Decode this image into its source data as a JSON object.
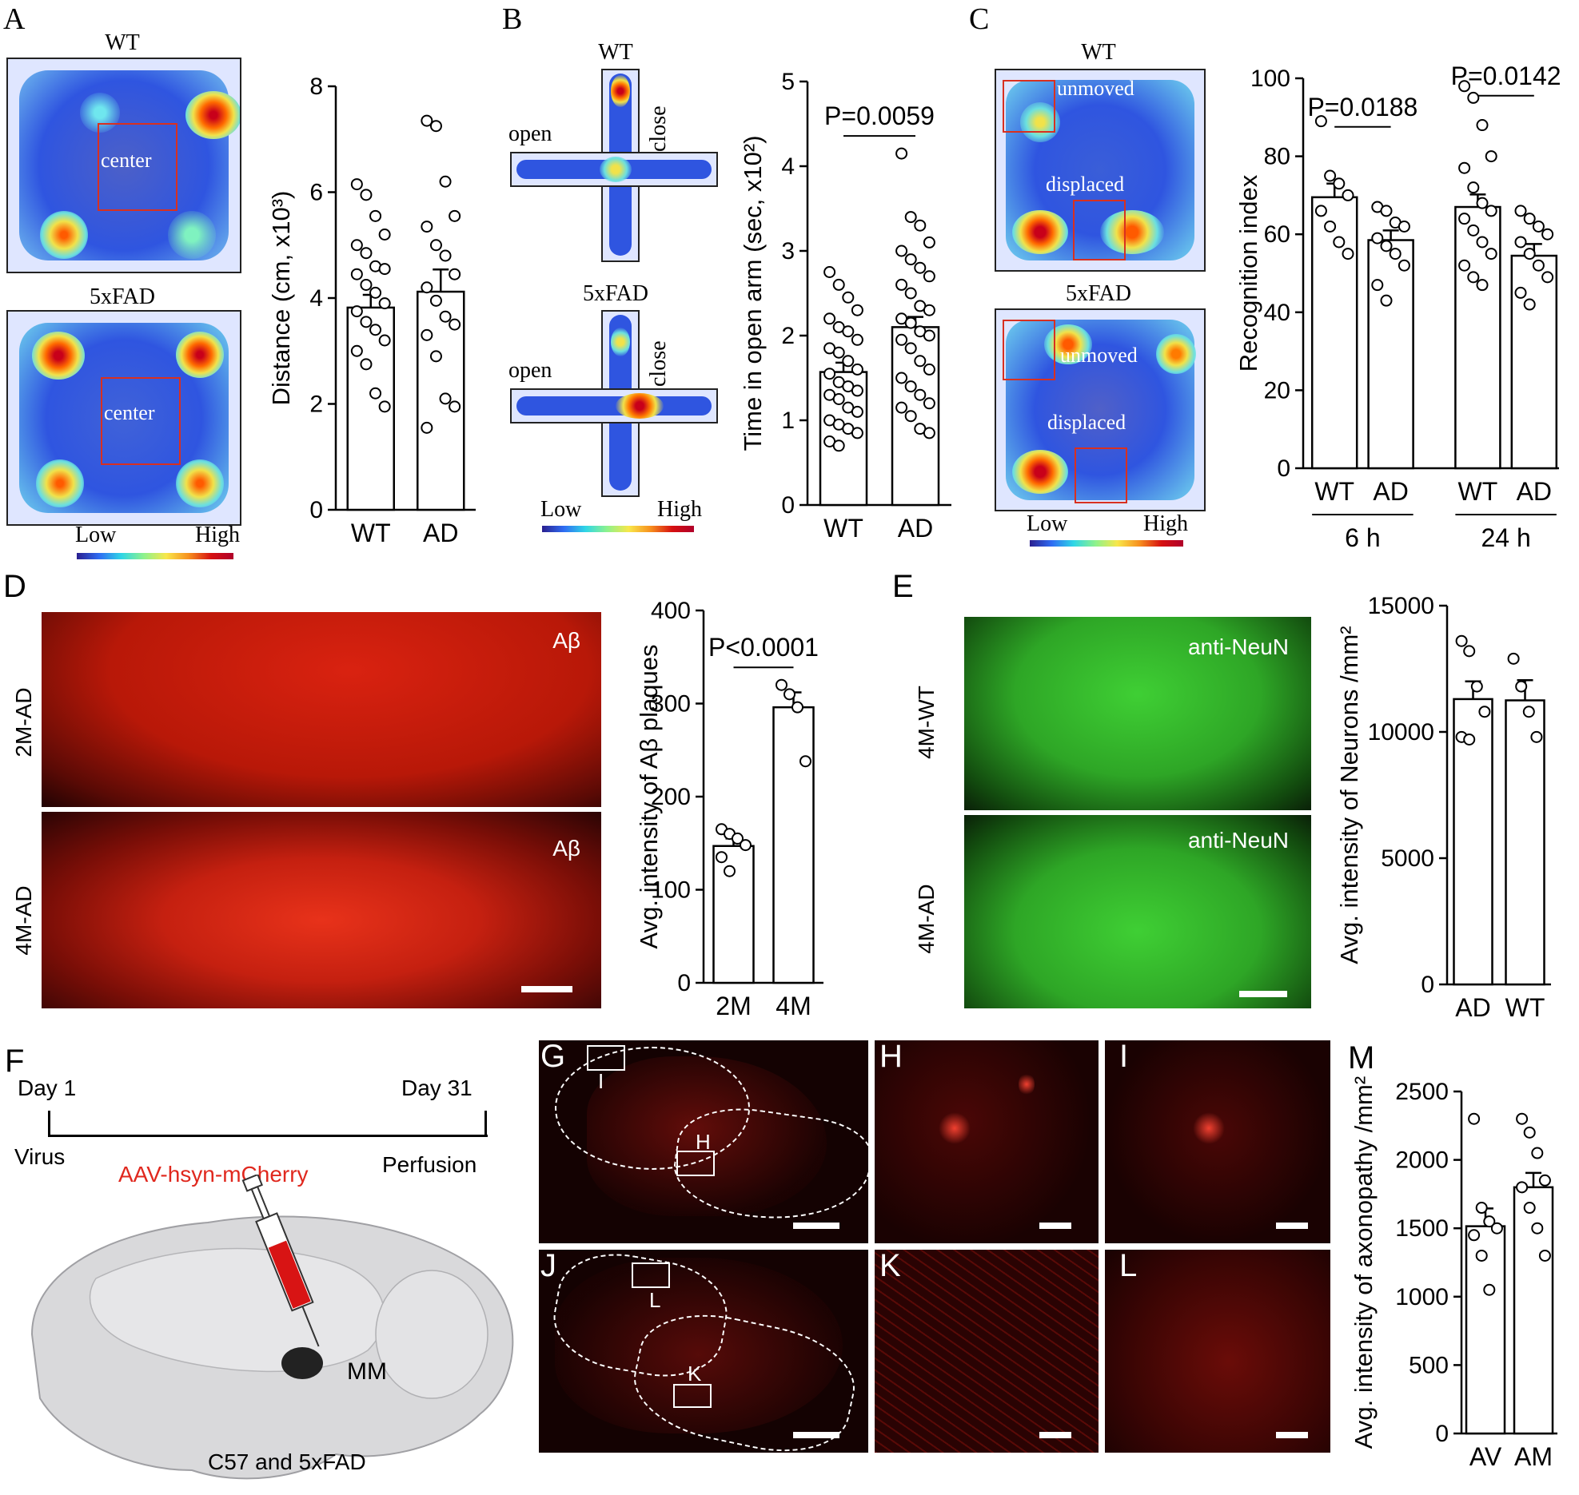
{
  "panels": {
    "A": {
      "letter": "A",
      "maps": [
        {
          "title": "WT",
          "box_label": "center"
        },
        {
          "title": "5xFAD",
          "box_label": "center"
        }
      ],
      "scale_low": "Low",
      "scale_high": "High"
    },
    "B": {
      "letter": "B",
      "maps": [
        {
          "title": "WT",
          "open": "open",
          "close": "close"
        },
        {
          "title": "5xFAD",
          "open": "open",
          "close": "close"
        }
      ],
      "scale_low": "Low",
      "scale_high": "High"
    },
    "C": {
      "letter": "C",
      "maps": [
        {
          "title": "WT",
          "unmoved": "unmoved",
          "displaced": "displaced"
        },
        {
          "title": "5xFAD",
          "unmoved": "unmoved",
          "displaced": "displaced"
        }
      ],
      "scale_low": "Low",
      "scale_high": "High"
    },
    "D": {
      "letter": "D",
      "rows": [
        {
          "side": "2M-AD",
          "tag": "Aβ"
        },
        {
          "side": "4M-AD",
          "tag": "Aβ"
        }
      ]
    },
    "E": {
      "letter": "E",
      "rows": [
        {
          "side": "4M-WT",
          "tag": "anti-NeuN"
        },
        {
          "side": "4M-AD",
          "tag": "anti-NeuN"
        }
      ]
    },
    "F": {
      "letter": "F",
      "day1": "Day 1",
      "day31": "Day 31",
      "virus": "Virus",
      "perfusion": "Perfusion",
      "aav": "AAV-hsyn-mCherry",
      "mm": "MM",
      "mice": "C57 and 5xFAD"
    },
    "G": {
      "letter": "G",
      "box1": "I",
      "box2": "H"
    },
    "H": {
      "letter": "H"
    },
    "I": {
      "letter": "I"
    },
    "J": {
      "letter": "J",
      "box1": "L",
      "box2": "K"
    },
    "K": {
      "letter": "K"
    },
    "L": {
      "letter": "L"
    },
    "M": {
      "letter": "M"
    }
  },
  "chart_data": [
    {
      "panel": "A",
      "type": "bar",
      "categories": [
        "WT",
        "AD"
      ],
      "values": [
        3.82,
        4.12
      ],
      "sem": [
        0.24,
        0.42
      ],
      "points": [
        [
          6.15,
          5.95,
          5.55,
          5.2,
          5.0,
          4.85,
          4.6,
          4.55,
          4.45,
          4.25,
          4.1,
          3.9,
          3.75,
          3.55,
          3.4,
          3.2,
          3.0,
          2.75,
          2.2,
          1.95
        ],
        [
          7.35,
          7.25,
          6.2,
          5.55,
          5.35,
          5.0,
          4.8,
          4.45,
          4.2,
          3.95,
          3.65,
          3.5,
          3.3,
          2.9,
          2.1,
          1.95,
          1.55
        ]
      ],
      "ylabel": "Distance (cm, x10³)",
      "ylim": [
        0,
        8
      ],
      "yticks": [
        0,
        2,
        4,
        6,
        8
      ]
    },
    {
      "panel": "B",
      "type": "bar",
      "categories": [
        "WT",
        "AD"
      ],
      "values": [
        1.57,
        2.1
      ],
      "sem": [
        0.11,
        0.12
      ],
      "points": [
        [
          2.75,
          2.6,
          2.45,
          2.3,
          2.2,
          2.1,
          2.05,
          1.95,
          1.85,
          1.8,
          1.7,
          1.6,
          1.55,
          1.45,
          1.4,
          1.35,
          1.3,
          1.25,
          1.15,
          1.1,
          1.0,
          0.95,
          0.9,
          0.85,
          0.75,
          0.7
        ],
        [
          4.15,
          3.4,
          3.3,
          3.1,
          3.0,
          2.9,
          2.8,
          2.7,
          2.6,
          2.5,
          2.35,
          2.3,
          2.2,
          2.15,
          2.05,
          2.0,
          1.95,
          1.85,
          1.7,
          1.6,
          1.5,
          1.4,
          1.3,
          1.2,
          1.15,
          1.05,
          0.9,
          0.85
        ]
      ],
      "annotation": "P=0.0059",
      "ylabel": "Time in open arm (sec, x10²)",
      "ylim": [
        0,
        5
      ],
      "yticks": [
        0,
        1,
        2,
        3,
        4,
        5
      ]
    },
    {
      "panel": "C",
      "type": "bar",
      "categories": [
        "WT",
        "AD",
        "WT",
        "AD"
      ],
      "groups": [
        "6 h",
        "24 h"
      ],
      "values": [
        69.5,
        58.5,
        67,
        54.5
      ],
      "sem": [
        3.5,
        2.5,
        3.2,
        3.0
      ],
      "points": [
        [
          89,
          75,
          73,
          70,
          66,
          62,
          58,
          55
        ],
        [
          67,
          66,
          63,
          62,
          59,
          57,
          55,
          52,
          47,
          43
        ],
        [
          98,
          95,
          88,
          80,
          77,
          72,
          68,
          66,
          64,
          61,
          58,
          55,
          52,
          49,
          47
        ],
        [
          66,
          64,
          62,
          60,
          58,
          55,
          52,
          49,
          45,
          42
        ]
      ],
      "annotations": [
        "P=0.0188",
        "P=0.0142"
      ],
      "ylabel": "Recognition index",
      "ylim": [
        0,
        100
      ],
      "yticks": [
        0,
        20,
        40,
        60,
        80,
        100
      ]
    },
    {
      "panel": "D",
      "type": "bar",
      "categories": [
        "2M",
        "4M"
      ],
      "values": [
        147,
        296
      ],
      "sem": [
        8,
        16
      ],
      "points": [
        [
          165,
          160,
          155,
          148,
          135,
          120
        ],
        [
          320,
          310,
          296,
          238
        ]
      ],
      "annotation": "P<0.0001",
      "ylabel": "Avg. intensity of Aβ plaques",
      "ylim": [
        0,
        400
      ],
      "yticks": [
        0,
        100,
        200,
        300,
        400
      ]
    },
    {
      "panel": "E",
      "type": "bar",
      "categories": [
        "AD",
        "WT"
      ],
      "values": [
        11300,
        11250
      ],
      "sem": [
        700,
        800
      ],
      "points": [
        [
          13600,
          13200,
          11800,
          10800,
          9800,
          9700
        ],
        [
          12900,
          11800,
          10800,
          9800
        ]
      ],
      "ylabel": "Avg. intensity of Neurons /mm²",
      "ylim": [
        0,
        15000
      ],
      "yticks": [
        0,
        5000,
        10000,
        15000
      ]
    },
    {
      "panel": "M",
      "type": "bar",
      "categories": [
        "AV",
        "AM"
      ],
      "values": [
        1515,
        1800
      ],
      "sem": [
        130,
        105
      ],
      "points": [
        [
          2300,
          1650,
          1550,
          1500,
          1450,
          1300,
          1050
        ],
        [
          2300,
          2200,
          2050,
          1850,
          1800,
          1650,
          1500,
          1300
        ]
      ],
      "ylabel": "Avg. intensity of axonopathy /mm²",
      "ylim": [
        0,
        2500
      ],
      "yticks": [
        0,
        500,
        1000,
        1500,
        2000,
        2500
      ]
    }
  ]
}
